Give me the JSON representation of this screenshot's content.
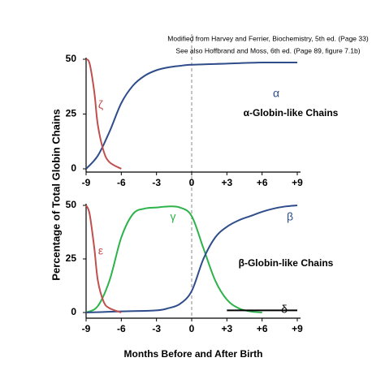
{
  "chart_data": [
    {
      "type": "line",
      "title": "α-Globin-like Chains",
      "ylabel": "Percentage of Total Globin Chains",
      "annotations": [
        "Modified from Harvey and Ferrier, Biochemistry, 5th ed. (Page 33)",
        "See also Hoffbrand and Moss, 6th ed. (Page 89, figure 7.1b)"
      ],
      "xlim": [
        -9,
        9
      ],
      "ylim": [
        0,
        50
      ],
      "xticks": [
        -9,
        -6,
        -3,
        0,
        {
          "value": 3,
          "label": "+3"
        },
        {
          "value": 6,
          "label": "+6"
        },
        {
          "value": 9,
          "label": "+9"
        }
      ],
      "yticks": [
        0,
        25,
        50
      ],
      "series": [
        {
          "name": "α",
          "color": "#2e4d8a",
          "x": [
            -9,
            -8,
            -7,
            -6,
            -5,
            -4,
            -3,
            -2,
            -1,
            0,
            3,
            6,
            9
          ],
          "values": [
            0,
            6,
            17,
            30,
            38,
            42.5,
            45,
            46.3,
            47,
            47.5,
            48,
            48.5,
            48.5
          ]
        },
        {
          "name": "ζ",
          "color": "#c0504d",
          "x": [
            -9,
            -8.7,
            -8.3,
            -8,
            -7.5,
            -7,
            -6
          ],
          "values": [
            50,
            48,
            35,
            20,
            8,
            3,
            0
          ]
        }
      ]
    },
    {
      "type": "line",
      "title": "β-Globin-like Chains",
      "xlabel": "Months Before and After Birth",
      "xlim": [
        -9,
        9
      ],
      "ylim": [
        0,
        50
      ],
      "xticks": [
        -9,
        -6,
        -3,
        0,
        {
          "value": 3,
          "label": "+3"
        },
        {
          "value": 6,
          "label": "+6"
        },
        {
          "value": 9,
          "label": "+9"
        }
      ],
      "yticks": [
        0,
        25,
        50
      ],
      "series": [
        {
          "name": "γ",
          "color": "#2db34a",
          "x": [
            -9,
            -8,
            -7,
            -6,
            -5,
            -4,
            -3,
            -2,
            -1,
            0,
            1,
            2,
            3,
            4,
            5,
            6
          ],
          "values": [
            0,
            3,
            15,
            35,
            46,
            48.5,
            49,
            49.5,
            49,
            45,
            30,
            15,
            6,
            2,
            0.5,
            0
          ]
        },
        {
          "name": "β",
          "color": "#2e4d8a",
          "x": [
            -9,
            -6,
            -3,
            -2,
            -1,
            0,
            1,
            2,
            3,
            4,
            5,
            6,
            7,
            8,
            9
          ],
          "values": [
            0,
            0.5,
            1,
            2,
            4,
            10,
            25,
            35,
            40,
            43,
            45,
            47,
            48.5,
            49.5,
            50
          ]
        },
        {
          "name": "ε",
          "color": "#c0504d",
          "x": [
            -9,
            -8.7,
            -8.3,
            -8,
            -7.5,
            -7,
            -6
          ],
          "values": [
            50,
            46,
            30,
            15,
            5,
            2,
            0
          ]
        },
        {
          "name": "δ",
          "color": "#000000",
          "x": [
            3,
            9
          ],
          "values": [
            1,
            1
          ]
        }
      ]
    }
  ]
}
